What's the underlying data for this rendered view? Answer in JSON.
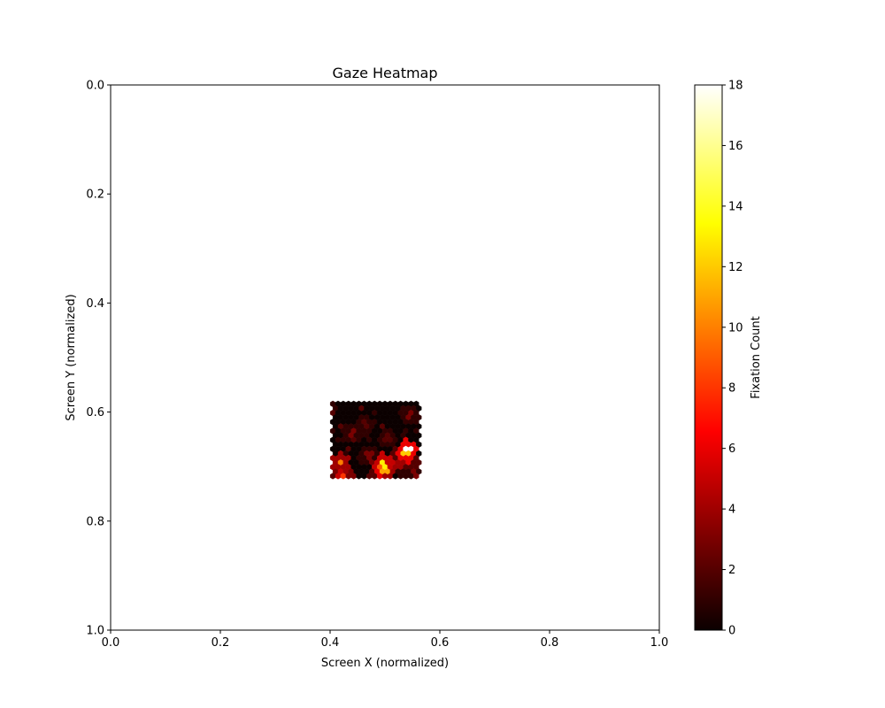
{
  "chart_data": {
    "type": "heatmap",
    "subtype": "hexbin",
    "title": "Gaze Heatmap",
    "xlabel": "Screen X (normalized)",
    "ylabel": "Screen Y (normalized)",
    "xlim": [
      0.0,
      1.0
    ],
    "ylim": [
      1.0,
      0.0
    ],
    "y_inverted": true,
    "xticks": [
      "0.0",
      "0.2",
      "0.4",
      "0.6",
      "0.8",
      "1.0"
    ],
    "yticks": [
      "0.0",
      "0.2",
      "0.4",
      "0.6",
      "0.8",
      "1.0"
    ],
    "colorbar": {
      "label": "Fixation Count",
      "colormap": "hot",
      "range": [
        0,
        18
      ],
      "ticks": [
        "0",
        "2",
        "4",
        "6",
        "8",
        "10",
        "12",
        "14",
        "16",
        "18"
      ]
    },
    "grid": false,
    "data_region": {
      "x": [
        0.405,
        0.565
      ],
      "y": [
        0.585,
        0.725
      ]
    },
    "background_count": 0,
    "hotspots": [
      {
        "x": 0.54,
        "y": 0.668,
        "count": 18
      },
      {
        "x": 0.536,
        "y": 0.675,
        "count": 12
      },
      {
        "x": 0.497,
        "y": 0.694,
        "count": 13
      },
      {
        "x": 0.5,
        "y": 0.708,
        "count": 11
      },
      {
        "x": 0.492,
        "y": 0.7,
        "count": 9
      },
      {
        "x": 0.42,
        "y": 0.694,
        "count": 10
      },
      {
        "x": 0.425,
        "y": 0.718,
        "count": 8
      },
      {
        "x": 0.418,
        "y": 0.712,
        "count": 5
      },
      {
        "x": 0.545,
        "y": 0.688,
        "count": 6
      },
      {
        "x": 0.53,
        "y": 0.68,
        "count": 6
      },
      {
        "x": 0.487,
        "y": 0.712,
        "count": 6
      },
      {
        "x": 0.525,
        "y": 0.7,
        "count": 4
      },
      {
        "x": 0.545,
        "y": 0.605,
        "count": 3
      },
      {
        "x": 0.44,
        "y": 0.64,
        "count": 3
      },
      {
        "x": 0.47,
        "y": 0.68,
        "count": 3
      },
      {
        "x": 0.465,
        "y": 0.625,
        "count": 2
      },
      {
        "x": 0.505,
        "y": 0.65,
        "count": 2
      },
      {
        "x": 0.555,
        "y": 0.715,
        "count": 3
      }
    ]
  }
}
